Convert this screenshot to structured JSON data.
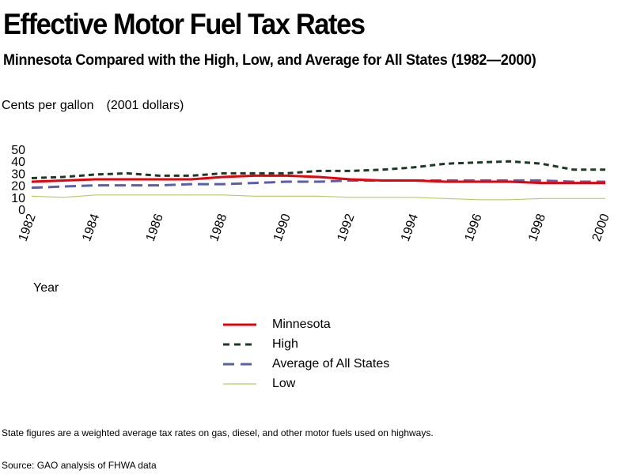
{
  "page": {
    "title": "Effective Motor Fuel Tax Rates",
    "subtitle": "Minnesota Compared with the High, Low, and Average for All States (1982—2000)",
    "units_main": "Cents per gallon",
    "units_note": "(2001 dollars)",
    "note": "State figures are a weighted average tax rates on gas, diesel, and other motor fuels used on highways.",
    "source": "Source: GAO analysis of FHWA data"
  },
  "chart_data": {
    "type": "line",
    "title": "Effective Motor Fuel Tax Rates",
    "xlabel": "Year",
    "ylabel": "Cents per gallon (2001 dollars)",
    "x": [
      1982,
      1983,
      1984,
      1985,
      1986,
      1987,
      1988,
      1989,
      1990,
      1991,
      1992,
      1993,
      1994,
      1995,
      1996,
      1997,
      1998,
      1999,
      2000
    ],
    "xticks": [
      "1982",
      "1984",
      "1986",
      "1988",
      "1990",
      "1992",
      "1994",
      "1996",
      "1998",
      "2000"
    ],
    "yticks": [
      "0",
      "10",
      "20",
      "30",
      "40",
      "50"
    ],
    "ylim": [
      0,
      50
    ],
    "grid": false,
    "legend_position": "bottom",
    "series": [
      {
        "name": "Minnesota",
        "color": "#e8000b",
        "style": "solid",
        "values": [
          23,
          24,
          25,
          25,
          25,
          25,
          27,
          28,
          28,
          27,
          25,
          24,
          24,
          23,
          23,
          23,
          22,
          22,
          22
        ]
      },
      {
        "name": "High",
        "color": "#1b3a26",
        "style": "dashed",
        "values": [
          26,
          27,
          29,
          30,
          28,
          28,
          30,
          30,
          30,
          32,
          32,
          33,
          35,
          38,
          39,
          40,
          38,
          33,
          33
        ]
      },
      {
        "name": "Average of All States",
        "color": "#5b5ea8",
        "style": "longdash",
        "values": [
          18,
          19,
          20,
          20,
          20,
          21,
          21,
          22,
          23,
          23,
          24,
          24,
          24,
          24,
          24,
          24,
          24,
          23,
          23
        ]
      },
      {
        "name": "Low",
        "color": "#b5c96a",
        "style": "solid",
        "values": [
          11,
          10,
          12,
          12,
          12,
          12,
          12,
          11,
          11,
          11,
          10,
          10,
          10,
          9,
          8,
          8,
          9,
          9,
          9
        ]
      }
    ]
  }
}
